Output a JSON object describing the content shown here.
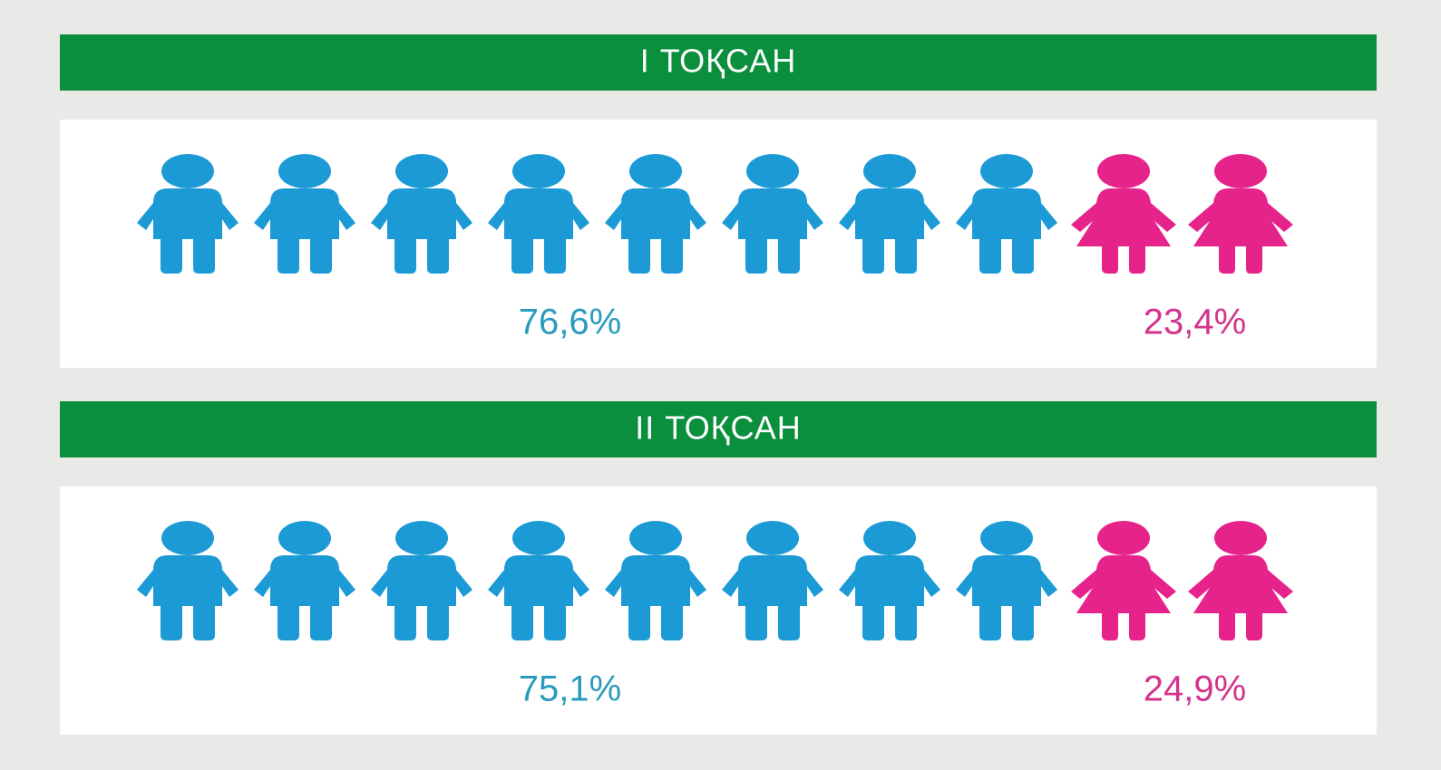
{
  "chart_data": [
    {
      "type": "pictogram",
      "title": "I ТОҚСАН",
      "series": [
        {
          "color": "#1b9ad6",
          "values": [
            76.6
          ],
          "value_labels": [
            "76,6%"
          ]
        },
        {
          "color": "#e6238a",
          "values": [
            23.4
          ],
          "value_labels": [
            "23,4%"
          ]
        }
      ]
    },
    {
      "type": "pictogram",
      "title": "II ТОҚСАН",
      "series": [
        {
          "color": "#1b9ad6",
          "values": [
            75.1
          ],
          "value_labels": [
            "75,1%"
          ]
        },
        {
          "color": "#e6238a",
          "values": [
            24.9
          ],
          "value_labels": [
            "24,9%"
          ]
        }
      ]
    }
  ]
}
